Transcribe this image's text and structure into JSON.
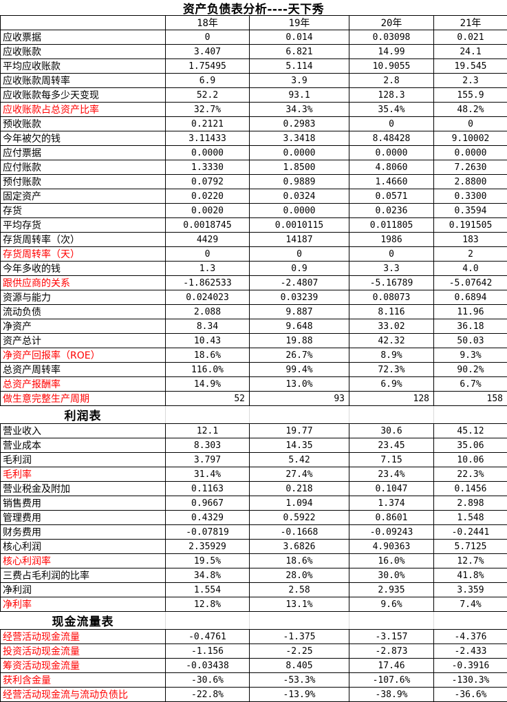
{
  "title": "资产负债表分析----天下秀",
  "columns": [
    "18年",
    "19年",
    "20年",
    "21年"
  ],
  "colors": {
    "label_red": "#ff0000",
    "text_black": "#000000",
    "cell_border": "#000000",
    "section_gridline": "#d9d9d9",
    "background": "#ffffff"
  },
  "sections": [
    {
      "name": "balance-sheet-analysis",
      "header": null,
      "rows": [
        {
          "label": "应收票据",
          "red": false,
          "values": [
            "0",
            "0.014",
            "0.03098",
            "0.021"
          ]
        },
        {
          "label": "应收账款",
          "red": false,
          "values": [
            "3.407",
            "6.821",
            "14.99",
            "24.1"
          ]
        },
        {
          "label": "平均应收账款",
          "red": false,
          "values": [
            "1.75495",
            "5.114",
            "10.9055",
            "19.545"
          ]
        },
        {
          "label": "应收账款周转率",
          "red": false,
          "values": [
            "6.9",
            "3.9",
            "2.8",
            "2.3"
          ]
        },
        {
          "label": "应收账款每多少天变现",
          "red": false,
          "values": [
            "52.2",
            "93.1",
            "128.3",
            "155.9"
          ]
        },
        {
          "label": "应收账款占总资产比率",
          "red": true,
          "values": [
            "32.7%",
            "34.3%",
            "35.4%",
            "48.2%"
          ]
        },
        {
          "label": "预收账款",
          "red": false,
          "values": [
            "0.2121",
            "0.2983",
            "0",
            "0"
          ]
        },
        {
          "label": "今年被欠的钱",
          "red": false,
          "values": [
            "3.11433",
            "3.3418",
            "8.48428",
            "9.10002"
          ]
        },
        {
          "label": "应付票据",
          "red": false,
          "values": [
            "0.0000",
            "0.0000",
            "0.0000",
            "0.0000"
          ]
        },
        {
          "label": "应付账款",
          "red": false,
          "values": [
            "1.3330",
            "1.8500",
            "4.8060",
            "7.2630"
          ]
        },
        {
          "label": "预付账款",
          "red": false,
          "values": [
            "0.0792",
            "0.9889",
            "1.4660",
            "2.8800"
          ]
        },
        {
          "label": "固定资产",
          "red": false,
          "tall": true,
          "values": [
            "0.0220",
            "0.0324",
            "0.0571",
            "0.3300"
          ]
        },
        {
          "label": "存货",
          "red": false,
          "tall": true,
          "values": [
            "0.0020",
            "0.0000",
            "0.0236",
            "0.3594"
          ]
        },
        {
          "label": "平均存货",
          "red": false,
          "values": [
            "0.0018745",
            "0.0010115",
            "0.011805",
            "0.191505"
          ]
        },
        {
          "label": "存货周转率（次）",
          "red": false,
          "values": [
            "4429",
            "14187",
            "1986",
            "183"
          ]
        },
        {
          "label": "存货周转率（天）",
          "red": true,
          "values": [
            "0",
            "0",
            "0",
            "2"
          ]
        },
        {
          "label": "今年多收的钱",
          "red": false,
          "values": [
            "1.3",
            "0.9",
            "3.3",
            "4.0"
          ]
        },
        {
          "label": "跟供应商的关系",
          "red": true,
          "values": [
            "-1.862533",
            "-2.4807",
            "-5.16789",
            "-5.07642"
          ]
        },
        {
          "label": "资源与能力",
          "red": false,
          "values": [
            "0.024023",
            "0.03239",
            "0.08073",
            "0.6894"
          ]
        },
        {
          "label": "流动负债",
          "red": false,
          "tall": true,
          "values": [
            "2.088",
            "9.887",
            "8.116",
            "11.96"
          ]
        },
        {
          "label": "净资产",
          "red": false,
          "tall": true,
          "values": [
            "8.34",
            "9.648",
            "33.02",
            "36.18"
          ]
        },
        {
          "label": "资产总计",
          "red": false,
          "tall": true,
          "values": [
            "10.43",
            "19.88",
            "42.32",
            "50.03"
          ]
        },
        {
          "label": "净资产回报率（ROE）",
          "red": true,
          "values": [
            "18.6%",
            "26.7%",
            "8.9%",
            "9.3%"
          ]
        },
        {
          "label": "总资产周转率",
          "red": false,
          "values": [
            "116.0%",
            "99.4%",
            "72.3%",
            "90.2%"
          ]
        },
        {
          "label": "总资产报酬率",
          "red": true,
          "values": [
            "14.9%",
            "13.0%",
            "6.9%",
            "6.7%"
          ]
        },
        {
          "label": "做生意完整生产周期",
          "red": true,
          "align": "right",
          "values": [
            "52",
            "93",
            "128",
            "158"
          ]
        }
      ]
    },
    {
      "name": "income-statement",
      "header": "利润表",
      "rows": [
        {
          "label": "营业收入",
          "red": false,
          "values": [
            "12.1",
            "19.77",
            "30.6",
            "45.12"
          ]
        },
        {
          "label": "营业成本",
          "red": false,
          "values": [
            "8.303",
            "14.35",
            "23.45",
            "35.06"
          ]
        },
        {
          "label": "毛利润",
          "red": false,
          "values": [
            "3.797",
            "5.42",
            "7.15",
            "10.06"
          ]
        },
        {
          "label": "毛利率",
          "red": true,
          "values": [
            "31.4%",
            "27.4%",
            "23.4%",
            "22.3%"
          ]
        },
        {
          "label": "营业税金及附加",
          "red": false,
          "values": [
            "0.1163",
            "0.218",
            "0.1047",
            "0.1456"
          ]
        },
        {
          "label": "销售费用",
          "red": false,
          "values": [
            "0.9667",
            "1.094",
            "1.374",
            "2.898"
          ]
        },
        {
          "label": "管理费用",
          "red": false,
          "values": [
            "0.4329",
            "0.5922",
            "0.8601",
            "1.548"
          ]
        },
        {
          "label": "财务费用",
          "red": false,
          "values": [
            "-0.07819",
            "-0.1668",
            "-0.09243",
            "-0.2441"
          ]
        },
        {
          "label": "核心利润",
          "red": false,
          "values": [
            "2.35929",
            "3.6826",
            "4.90363",
            "5.7125"
          ]
        },
        {
          "label": "核心利润率",
          "red": true,
          "values": [
            "19.5%",
            "18.6%",
            "16.0%",
            "12.7%"
          ]
        },
        {
          "label": "三费占毛利润的比率",
          "red": false,
          "values": [
            "34.8%",
            "28.0%",
            "30.0%",
            "41.8%"
          ]
        },
        {
          "label": "净利润",
          "red": false,
          "values": [
            "1.554",
            "2.58",
            "2.935",
            "3.359"
          ]
        },
        {
          "label": "净利率",
          "red": true,
          "values": [
            "12.8%",
            "13.1%",
            "9.6%",
            "7.4%"
          ]
        }
      ]
    },
    {
      "name": "cash-flow-statement",
      "header": "现金流量表",
      "rows": [
        {
          "label": "经营活动现金流量",
          "red": true,
          "values": [
            "-0.4761",
            "-1.375",
            "-3.157",
            "-4.376"
          ]
        },
        {
          "label": "投资活动现金流量",
          "red": true,
          "values": [
            "-1.156",
            "-2.25",
            "-2.873",
            "-2.433"
          ]
        },
        {
          "label": "筹资活动现金流量",
          "red": true,
          "values": [
            "-0.03438",
            "8.405",
            "17.46",
            "-0.3916"
          ]
        },
        {
          "label": "获利含金量",
          "red": true,
          "values": [
            "-30.6%",
            "-53.3%",
            "-107.6%",
            "-130.3%"
          ]
        },
        {
          "label": "经营活动现金流与流动负债比",
          "red": true,
          "values": [
            "-22.8%",
            "-13.9%",
            "-38.9%",
            "-36.6%"
          ]
        }
      ]
    }
  ]
}
